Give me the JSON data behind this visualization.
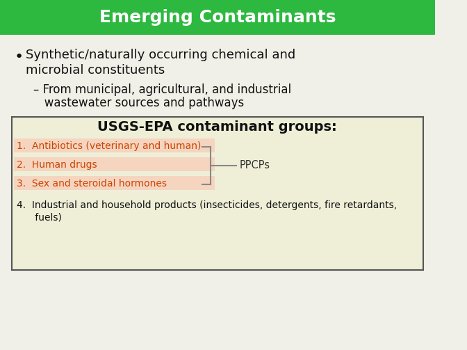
{
  "title": "Emerging Contaminants",
  "title_bg": "#2db840",
  "title_color": "#ffffff",
  "slide_bg": "#f0f0e8",
  "bullet1_line1": "Synthetic/naturally occurring chemical and",
  "bullet1_line2": "microbial constituents",
  "sub_bullet1_line1": "– From municipal, agricultural, and industrial",
  "sub_bullet1_line2": "   wastewater sources and pathways",
  "box_title": "USGS-EPA contaminant groups:",
  "box_bg": "#efefd8",
  "box_border": "#555555",
  "item1": "1.  Antibiotics (veterinary and human)",
  "item2": "2.  Human drugs",
  "item3": "3.  Sex and steroidal hormones",
  "item4_line1": "4.  Industrial and household products (insecticides, detergents, fire retardants,",
  "item4_line2": "      fuels)",
  "items_color": "#cc4400",
  "item4_color": "#111111",
  "ppcp_label": "PPCPs",
  "ppcp_color": "#333333",
  "bracket_color": "#888888",
  "bullet_color": "#111111",
  "sub_bullet_color": "#111111",
  "highlight_bg": "#f5d5c0"
}
